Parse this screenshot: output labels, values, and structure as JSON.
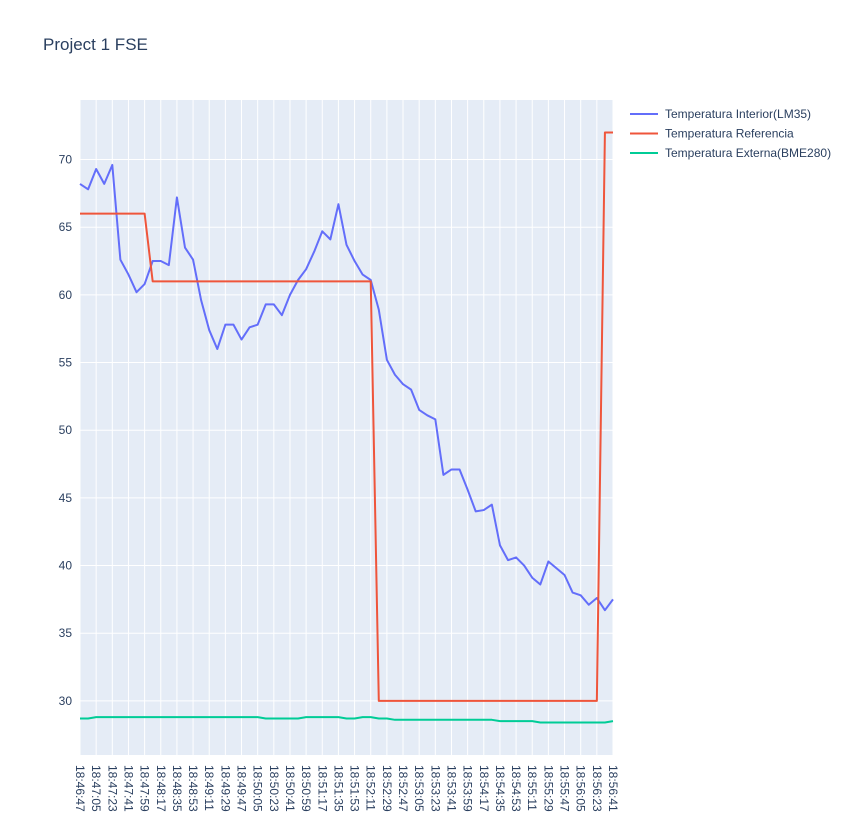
{
  "chart_data": {
    "type": "line",
    "title": "Project 1 FSE",
    "x": [
      "18:46:47",
      "18:46:56",
      "18:47:05",
      "18:47:14",
      "18:47:23",
      "18:47:32",
      "18:47:41",
      "18:47:50",
      "18:47:59",
      "18:48:08",
      "18:48:17",
      "18:48:26",
      "18:48:35",
      "18:48:44",
      "18:48:53",
      "18:49:02",
      "18:49:11",
      "18:49:20",
      "18:49:29",
      "18:49:38",
      "18:49:47",
      "18:49:56",
      "18:50:05",
      "18:50:14",
      "18:50:23",
      "18:50:32",
      "18:50:41",
      "18:50:50",
      "18:50:59",
      "18:51:08",
      "18:51:17",
      "18:51:26",
      "18:51:35",
      "18:51:44",
      "18:51:53",
      "18:52:02",
      "18:52:11",
      "18:52:20",
      "18:52:29",
      "18:52:38",
      "18:52:47",
      "18:52:56",
      "18:53:05",
      "18:53:14",
      "18:53:23",
      "18:53:32",
      "18:53:41",
      "18:53:50",
      "18:53:59",
      "18:54:08",
      "18:54:17",
      "18:54:26",
      "18:54:35",
      "18:54:44",
      "18:54:53",
      "18:55:02",
      "18:55:11",
      "18:55:20",
      "18:55:29",
      "18:55:38",
      "18:55:47",
      "18:55:56",
      "18:56:05",
      "18:56:14",
      "18:56:23",
      "18:56:32",
      "18:56:41"
    ],
    "series": [
      {
        "name": "Temperatura Interior(LM35)",
        "color": "#636efa",
        "values": [
          68.2,
          67.8,
          69.3,
          68.2,
          69.6,
          62.6,
          61.5,
          60.2,
          60.8,
          62.5,
          62.5,
          62.2,
          67.2,
          63.5,
          62.6,
          59.6,
          57.4,
          56.0,
          57.8,
          57.8,
          56.7,
          57.6,
          57.8,
          59.3,
          59.3,
          58.5,
          60.0,
          61.1,
          61.9,
          63.2,
          64.7,
          64.1,
          66.7,
          63.7,
          62.5,
          61.5,
          61.1,
          58.9,
          55.2,
          54.1,
          53.4,
          53.0,
          51.5,
          51.1,
          50.8,
          46.7,
          47.1,
          47.1,
          45.6,
          44.0,
          44.1,
          44.5,
          41.5,
          40.4,
          40.6,
          40.0,
          39.1,
          38.6,
          40.3,
          39.8,
          39.3,
          38.0,
          37.8,
          37.1,
          37.6,
          36.7,
          37.5
        ]
      },
      {
        "name": "Temperatura Referencia",
        "color": "#ef553b",
        "values": [
          66,
          66,
          66,
          66,
          66,
          66,
          66,
          66,
          66,
          61,
          61,
          61,
          61,
          61,
          61,
          61,
          61,
          61,
          61,
          61,
          61,
          61,
          61,
          61,
          61,
          61,
          61,
          61,
          61,
          61,
          61,
          61,
          61,
          61,
          61,
          61,
          61,
          30,
          30,
          30,
          30,
          30,
          30,
          30,
          30,
          30,
          30,
          30,
          30,
          30,
          30,
          30,
          30,
          30,
          30,
          30,
          30,
          30,
          30,
          30,
          30,
          30,
          30,
          30,
          30,
          72,
          72
        ]
      },
      {
        "name": "Temperatura Externa(BME280)",
        "color": "#00cc96",
        "values": [
          28.7,
          28.7,
          28.8,
          28.8,
          28.8,
          28.8,
          28.8,
          28.8,
          28.8,
          28.8,
          28.8,
          28.8,
          28.8,
          28.8,
          28.8,
          28.8,
          28.8,
          28.8,
          28.8,
          28.8,
          28.8,
          28.8,
          28.8,
          28.7,
          28.7,
          28.7,
          28.7,
          28.7,
          28.8,
          28.8,
          28.8,
          28.8,
          28.8,
          28.7,
          28.7,
          28.8,
          28.8,
          28.7,
          28.7,
          28.6,
          28.6,
          28.6,
          28.6,
          28.6,
          28.6,
          28.6,
          28.6,
          28.6,
          28.6,
          28.6,
          28.6,
          28.6,
          28.5,
          28.5,
          28.5,
          28.5,
          28.5,
          28.4,
          28.4,
          28.4,
          28.4,
          28.4,
          28.4,
          28.4,
          28.4,
          28.4,
          28.5
        ]
      }
    ],
    "xlim": [
      "18:46:47",
      "18:56:41"
    ],
    "xticks": [
      "18:46:47",
      "18:47:05",
      "18:47:23",
      "18:47:41",
      "18:47:59",
      "18:48:17",
      "18:48:35",
      "18:48:53",
      "18:49:11",
      "18:49:29",
      "18:49:47",
      "18:50:05",
      "18:50:23",
      "18:50:41",
      "18:50:59",
      "18:51:17",
      "18:51:35",
      "18:51:53",
      "18:52:11",
      "18:52:29",
      "18:52:47",
      "18:53:05",
      "18:53:23",
      "18:53:41",
      "18:53:59",
      "18:54:17",
      "18:54:35",
      "18:54:53",
      "18:55:11",
      "18:55:29",
      "18:55:47",
      "18:56:05",
      "18:56:23",
      "18:56:41"
    ],
    "ylim": [
      26,
      74.4
    ],
    "yticks": [
      30,
      35,
      40,
      45,
      50,
      55,
      60,
      65,
      70
    ],
    "grid": true
  }
}
